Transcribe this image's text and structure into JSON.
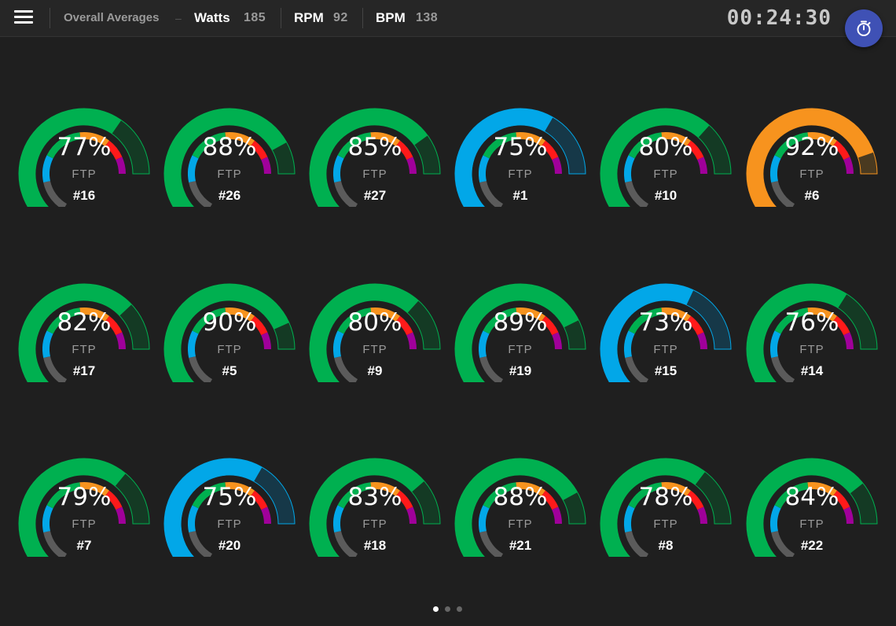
{
  "header": {
    "section_label": "Overall Averages",
    "separator": "–",
    "metrics": [
      {
        "label": "Watts",
        "value": "185"
      },
      {
        "label": "RPM",
        "value": "92"
      },
      {
        "label": "BPM",
        "value": "138"
      }
    ],
    "timer": "00:24:30",
    "menu_icon": "hamburger-menu-icon",
    "stopwatch_icon": "stopwatch-icon"
  },
  "colors": {
    "background": "#1f1f1f",
    "zone_green": "#00b050",
    "zone_blue": "#02a7e8",
    "zone_orange": "#f7931e",
    "zone_gray": "#5b5b5b",
    "zone_red": "#ff1a1a",
    "zone_purple": "#a0009a",
    "accent_button": "#3f51b5"
  },
  "unit_label": "FTP",
  "gauges": [
    {
      "percent": "77%",
      "rider": "#16",
      "zone": "green",
      "fill": 0.77
    },
    {
      "percent": "88%",
      "rider": "#26",
      "zone": "green",
      "fill": 0.88
    },
    {
      "percent": "85%",
      "rider": "#27",
      "zone": "green",
      "fill": 0.85
    },
    {
      "percent": "75%",
      "rider": "#1",
      "zone": "blue",
      "fill": 0.75
    },
    {
      "percent": "80%",
      "rider": "#10",
      "zone": "green",
      "fill": 0.8
    },
    {
      "percent": "92%",
      "rider": "#6",
      "zone": "orange",
      "fill": 0.92
    },
    {
      "percent": "82%",
      "rider": "#17",
      "zone": "green",
      "fill": 0.82
    },
    {
      "percent": "90%",
      "rider": "#5",
      "zone": "green",
      "fill": 0.9
    },
    {
      "percent": "80%",
      "rider": "#9",
      "zone": "green",
      "fill": 0.8
    },
    {
      "percent": "89%",
      "rider": "#19",
      "zone": "green",
      "fill": 0.89
    },
    {
      "percent": "73%",
      "rider": "#15",
      "zone": "blue",
      "fill": 0.73
    },
    {
      "percent": "76%",
      "rider": "#14",
      "zone": "green",
      "fill": 0.76
    },
    {
      "percent": "79%",
      "rider": "#7",
      "zone": "green",
      "fill": 0.79
    },
    {
      "percent": "75%",
      "rider": "#20",
      "zone": "blue",
      "fill": 0.75
    },
    {
      "percent": "83%",
      "rider": "#18",
      "zone": "green",
      "fill": 0.83
    },
    {
      "percent": "88%",
      "rider": "#21",
      "zone": "green",
      "fill": 0.88
    },
    {
      "percent": "78%",
      "rider": "#8",
      "zone": "green",
      "fill": 0.78
    },
    {
      "percent": "84%",
      "rider": "#22",
      "zone": "green",
      "fill": 0.84
    }
  ],
  "pagination": {
    "pages": 3,
    "current": 1
  }
}
